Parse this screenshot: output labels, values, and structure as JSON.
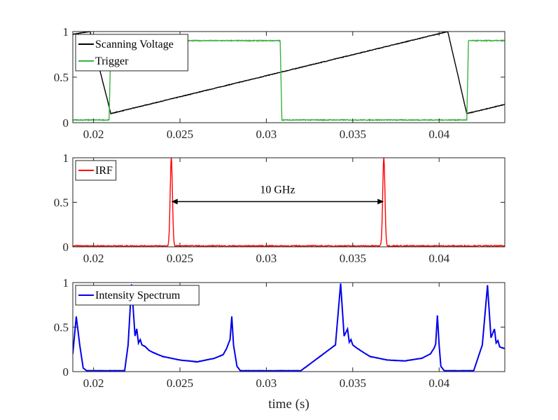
{
  "chart_data": [
    {
      "type": "line",
      "panel": "top",
      "title": "",
      "xlabel": "",
      "ylabel": "",
      "xlim": [
        0.0188,
        0.0438
      ],
      "ylim": [
        0,
        1
      ],
      "xticks": [
        0.02,
        0.025,
        0.03,
        0.035,
        0.04
      ],
      "xtick_labels": [
        "0.02",
        "0.025",
        "0.03",
        "0.035",
        "0.04"
      ],
      "yticks": [
        0,
        0.5,
        1
      ],
      "ytick_labels": [
        "0",
        "0.5",
        "1"
      ],
      "legend_placement": "top-left",
      "grid": false,
      "series": [
        {
          "name": "Scanning Voltage",
          "color": "#000000",
          "x": [
            0.0188,
            0.0198,
            0.021,
            0.0405,
            0.0416,
            0.0438
          ],
          "y": [
            0.97,
            1.0,
            0.1,
            1.0,
            0.1,
            0.2
          ]
        },
        {
          "name": "Trigger",
          "color": "#3cb043",
          "x": [
            0.0188,
            0.0209,
            0.021,
            0.0308,
            0.0309,
            0.0416,
            0.0417,
            0.0438
          ],
          "y": [
            0.03,
            0.03,
            0.9,
            0.9,
            0.03,
            0.03,
            0.9,
            0.9
          ]
        }
      ]
    },
    {
      "type": "line",
      "panel": "middle",
      "title": "",
      "xlabel": "",
      "ylabel": "",
      "xlim": [
        0.0188,
        0.0438
      ],
      "ylim": [
        0,
        1
      ],
      "xticks": [
        0.02,
        0.025,
        0.03,
        0.035,
        0.04
      ],
      "xtick_labels": [
        "0.02",
        "0.025",
        "0.03",
        "0.035",
        "0.04"
      ],
      "yticks": [
        0,
        0.5,
        1
      ],
      "ytick_labels": [
        "0",
        "0.5",
        "1"
      ],
      "legend_placement": "top-left",
      "grid": false,
      "series": [
        {
          "name": "IRF",
          "color": "#ff0000",
          "peaks": [
            {
              "x": 0.0245,
              "y": 1.0
            },
            {
              "x": 0.0368,
              "y": 1.0
            }
          ],
          "baseline": 0.01
        }
      ],
      "annotations": [
        {
          "text": "10 GHz",
          "x_from": 0.0245,
          "x_to": 0.0368,
          "y": 0.5
        }
      ]
    },
    {
      "type": "line",
      "panel": "bottom",
      "title": "",
      "xlabel": "time (s)",
      "ylabel": "",
      "xlim": [
        0.0188,
        0.0438
      ],
      "ylim": [
        0,
        1
      ],
      "xticks": [
        0.02,
        0.025,
        0.03,
        0.035,
        0.04
      ],
      "xtick_labels": [
        "0.02",
        "0.025",
        "0.03",
        "0.035",
        "0.04"
      ],
      "yticks": [
        0,
        0.5,
        1
      ],
      "ytick_labels": [
        "0",
        "0.5",
        "1"
      ],
      "legend_placement": "top-left",
      "grid": false,
      "series": [
        {
          "name": "Intensity Spectrum",
          "color": "#0000ee",
          "x": [
            0.0188,
            0.019,
            0.0192,
            0.0194,
            0.0196,
            0.02,
            0.021,
            0.0218,
            0.022,
            0.0222,
            0.0224,
            0.0225,
            0.0226,
            0.0227,
            0.0228,
            0.023,
            0.0232,
            0.0235,
            0.024,
            0.025,
            0.026,
            0.027,
            0.0275,
            0.0277,
            0.0278,
            0.0279,
            0.028,
            0.0281,
            0.0283,
            0.0285,
            0.029,
            0.03,
            0.032,
            0.034,
            0.0343,
            0.0345,
            0.0347,
            0.0348,
            0.0349,
            0.035,
            0.0352,
            0.0355,
            0.036,
            0.037,
            0.038,
            0.039,
            0.0395,
            0.0397,
            0.0398,
            0.0399,
            0.04,
            0.0401,
            0.0403,
            0.0405,
            0.041,
            0.042,
            0.0425,
            0.0428,
            0.043,
            0.0432,
            0.0433,
            0.0434,
            0.0435,
            0.0436,
            0.0438
          ],
          "y": [
            0.2,
            0.62,
            0.3,
            0.04,
            0.01,
            0.01,
            0.01,
            0.01,
            0.3,
            0.98,
            0.4,
            0.48,
            0.32,
            0.36,
            0.3,
            0.28,
            0.24,
            0.21,
            0.17,
            0.13,
            0.11,
            0.15,
            0.19,
            0.26,
            0.31,
            0.36,
            0.62,
            0.3,
            0.06,
            0.01,
            0.01,
            0.01,
            0.01,
            0.3,
            0.99,
            0.4,
            0.48,
            0.33,
            0.36,
            0.3,
            0.27,
            0.23,
            0.17,
            0.13,
            0.12,
            0.15,
            0.2,
            0.26,
            0.31,
            0.63,
            0.3,
            0.06,
            0.01,
            0.01,
            0.01,
            0.01,
            0.3,
            0.97,
            0.38,
            0.48,
            0.32,
            0.35,
            0.28,
            0.27,
            0.26
          ]
        }
      ]
    }
  ]
}
